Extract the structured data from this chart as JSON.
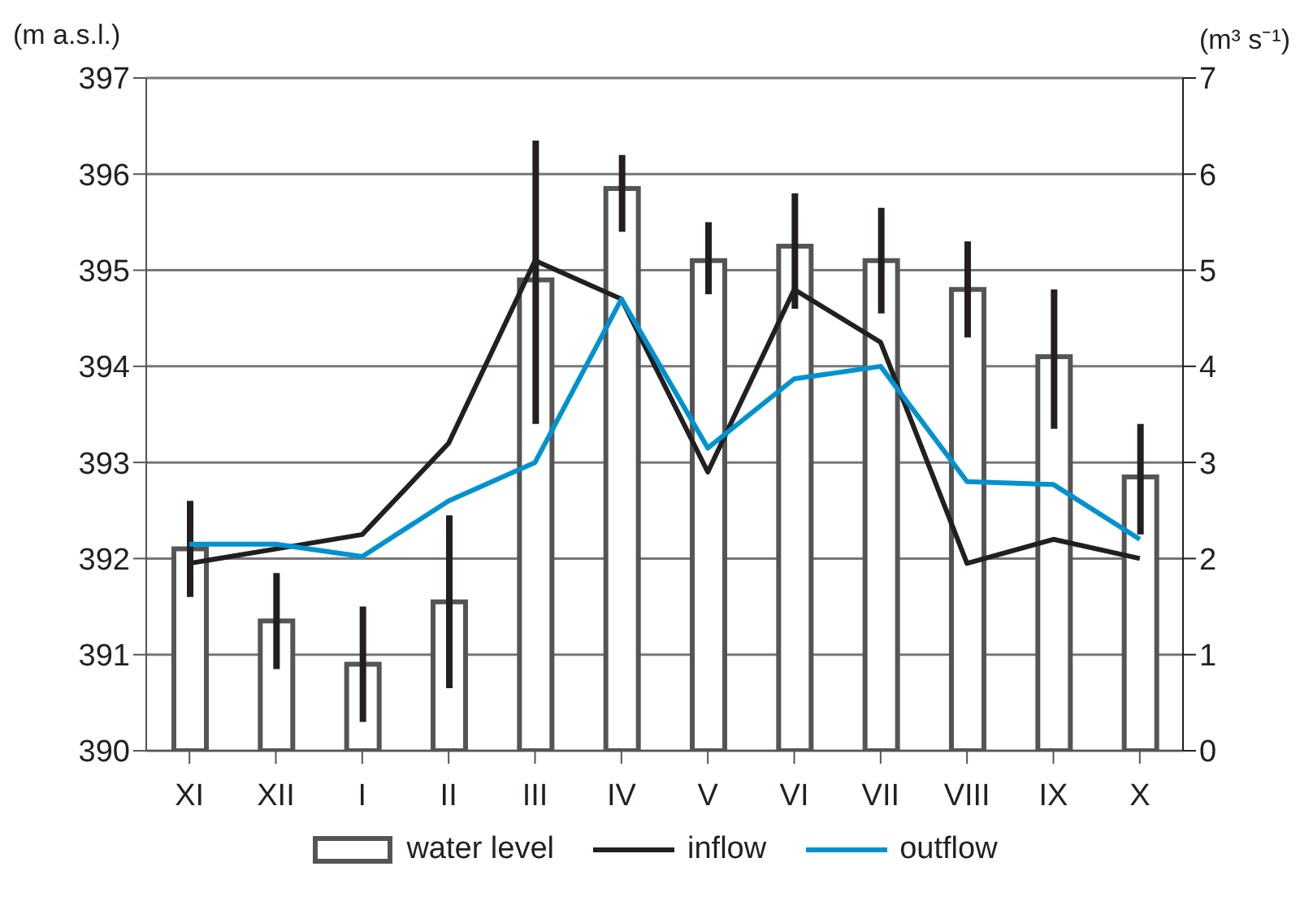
{
  "chart_data": {
    "type": "bar",
    "ylabel": "(m a.s.l.)",
    "y2label": "(m³ s⁻¹)",
    "categories": [
      "XI",
      "XII",
      "I",
      "II",
      "III",
      "IV",
      "V",
      "VI",
      "VII",
      "VIII",
      "IX",
      "X"
    ],
    "series": [
      {
        "name": "water level",
        "color": "#ffffff",
        "values": [
          392.1,
          391.35,
          390.9,
          391.55,
          394.9,
          395.85,
          395.1,
          395.25,
          395.1,
          394.8,
          394.1,
          392.85
        ],
        "errors": [
          [
            391.6,
            392.6
          ],
          [
            390.85,
            391.85
          ],
          [
            390.3,
            391.5
          ],
          [
            390.65,
            392.45
          ],
          [
            393.4,
            396.35
          ],
          [
            395.4,
            396.2
          ],
          [
            394.75,
            395.5
          ],
          [
            394.6,
            395.8
          ],
          [
            394.55,
            395.65
          ],
          [
            394.3,
            395.3
          ],
          [
            393.35,
            394.8
          ],
          [
            392.25,
            393.4
          ]
        ]
      },
      {
        "name": "inflow",
        "type": "line",
        "axis": "y2",
        "color": "#231f20",
        "values": [
          1.95,
          2.1,
          2.25,
          3.2,
          5.1,
          4.7,
          2.9,
          4.8,
          4.25,
          1.95,
          2.2,
          2.0
        ]
      },
      {
        "name": "outflow",
        "type": "line",
        "axis": "y2",
        "color": "#0092d0",
        "values": [
          2.15,
          2.15,
          2.02,
          2.6,
          3.0,
          4.7,
          3.15,
          3.87,
          4.0,
          2.8,
          2.77,
          2.2
        ]
      }
    ],
    "ylim": [
      390,
      397
    ],
    "yticks": [
      390,
      391,
      392,
      393,
      394,
      395,
      396,
      397
    ],
    "y2lim": [
      0,
      7
    ],
    "y2ticks": [
      0,
      1,
      2,
      3,
      4,
      5,
      6,
      7
    ],
    "grid": "y",
    "legend": "bottom",
    "marker": "none",
    "line_style": "solid"
  }
}
